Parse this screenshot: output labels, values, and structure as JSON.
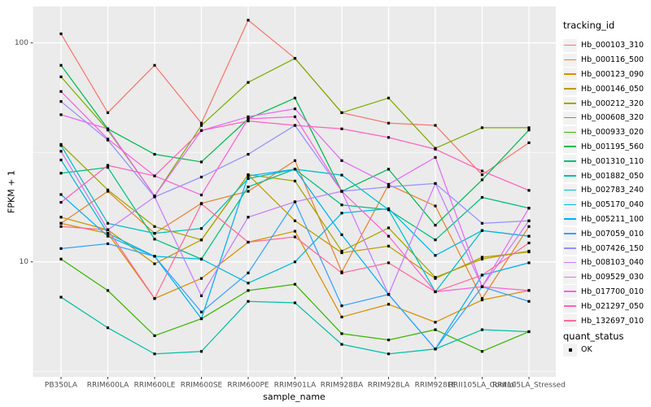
{
  "legend": {
    "tracking_title": "tracking_id",
    "quant_title": "quant_status",
    "quant_items": [
      {
        "label": "OK",
        "marker": "filled-black-square"
      }
    ]
  },
  "style": {
    "panel_background": "#EBEBEB",
    "gridline_color": "#FFFFFF",
    "tick_label_color": "#4D4D4D",
    "axis_title_color": "#000000",
    "point_color": "#000000",
    "legend_key_background": "#F2F2F2"
  },
  "chart_data": {
    "type": "line",
    "title": "",
    "xlabel": "sample_name",
    "ylabel": "FPKM + 1",
    "y_scale": "log10",
    "y_ticks": [
      10,
      100
    ],
    "y_minor_ticks": [
      3.162,
      31.62,
      316.2
    ],
    "ylim": [
      3.0,
      147
    ],
    "grid": true,
    "legend_position": "right",
    "point_shape": "filled-square-black",
    "x": [
      "PB350LA",
      "RRIM600LA",
      "RRIM600LE",
      "RRIM600SE",
      "RRIM600PE",
      "RRIM901LA",
      "RRIM928BA",
      "RRIM928LA",
      "RRIM928LE",
      "RRII105LA_Control",
      "RRII105LA_Stressed"
    ],
    "series": [
      {
        "name": "Hb_000103_310",
        "color": "#F8766D",
        "values": [
          110,
          48,
          79,
          43,
          127,
          85,
          48,
          43,
          42,
          25,
          35
        ]
      },
      {
        "name": "Hb_000116_500",
        "color": "#EA8331",
        "values": [
          15,
          21,
          13.5,
          18.5,
          21,
          29,
          9,
          22.5,
          18,
          6.8,
          14.5
        ]
      },
      {
        "name": "Hb_000123_090",
        "color": "#D89000",
        "values": [
          15,
          13.5,
          6.8,
          8.4,
          12.3,
          13.8,
          5.6,
          6.4,
          5.3,
          6.7,
          7.4
        ]
      },
      {
        "name": "Hb_000146_050",
        "color": "#BF9B00",
        "values": [
          16,
          14,
          9.8,
          12.6,
          25,
          15.4,
          11,
          11.8,
          8.4,
          10.5,
          11.1
        ]
      },
      {
        "name": "Hb_000212_320",
        "color": "#A3A500",
        "values": [
          34.4,
          21.3,
          14.5,
          12.6,
          25,
          23.4,
          11.2,
          14.3,
          8.5,
          10.3,
          11.2
        ]
      },
      {
        "name": "Hb_000608_320",
        "color": "#7CAE00",
        "values": [
          70,
          40,
          20,
          42,
          66,
          85,
          48,
          56,
          33,
          41,
          41
        ]
      },
      {
        "name": "Hb_000933_020",
        "color": "#39B600",
        "values": [
          10.3,
          7.4,
          4.6,
          5.5,
          7.4,
          7.9,
          4.7,
          4.4,
          4.9,
          3.9,
          4.8
        ]
      },
      {
        "name": "Hb_001195_560",
        "color": "#00BB4E",
        "values": [
          79,
          40.5,
          31,
          28.6,
          45,
          56,
          21,
          26.5,
          14.7,
          23.7,
          40
        ]
      },
      {
        "name": "Hb_001310_110",
        "color": "#00BF7D",
        "values": [
          25.4,
          27,
          12.7,
          10.3,
          22,
          26.5,
          18.2,
          17.3,
          12.6,
          19.7,
          17.6
        ]
      },
      {
        "name": "Hb_001882_050",
        "color": "#00C1A3",
        "values": [
          6.9,
          5.0,
          3.8,
          3.9,
          6.6,
          6.5,
          4.2,
          3.8,
          4.0,
          4.9,
          4.8
        ]
      },
      {
        "name": "Hb_002783_240",
        "color": "#00BFC4",
        "values": [
          34,
          15,
          13.5,
          14.2,
          24,
          26.5,
          24.9,
          17.3,
          7.3,
          13.9,
          13.1
        ]
      },
      {
        "name": "Hb_005170_040",
        "color": "#00BAE0",
        "values": [
          29.2,
          13.5,
          10.6,
          10.3,
          8.0,
          10.0,
          16.7,
          17.5,
          10.7,
          13.9,
          13.1
        ]
      },
      {
        "name": "Hb_005211_100",
        "color": "#00B0F6",
        "values": [
          20.3,
          13.1,
          10.6,
          5.5,
          24.7,
          26.5,
          13.3,
          7.1,
          4.0,
          8.7,
          9.9
        ]
      },
      {
        "name": "Hb_007059_010",
        "color": "#35A2FF",
        "values": [
          11.5,
          12.1,
          10.6,
          5.9,
          8.9,
          18.8,
          6.3,
          7.1,
          4.0,
          7.7,
          6.6
        ]
      },
      {
        "name": "Hb_007426_150",
        "color": "#9590FF",
        "values": [
          54,
          36,
          19.8,
          24.4,
          31,
          42,
          21,
          22,
          22.8,
          15,
          15.4
        ]
      },
      {
        "name": "Hb_008103_040",
        "color": "#C77CFF",
        "values": [
          32,
          14,
          19.8,
          7.0,
          16,
          18.8,
          21,
          7.1,
          22.8,
          7.7,
          15.4
        ]
      },
      {
        "name": "Hb_009529_030",
        "color": "#E76BF3",
        "values": [
          47,
          40.5,
          20,
          39.8,
          46,
          50,
          29,
          22.6,
          30,
          7.7,
          17.6
        ]
      },
      {
        "name": "Hb_017700_010",
        "color": "#FA62DB",
        "values": [
          60,
          36.4,
          24.7,
          20.2,
          45,
          46,
          21,
          13.1,
          7.3,
          7.7,
          7.4
        ]
      },
      {
        "name": "Hb_021297_050",
        "color": "#FF62BC",
        "values": [
          18.7,
          27.6,
          24.7,
          39.8,
          44,
          42,
          40.5,
          37,
          32.7,
          26,
          21.2
        ]
      },
      {
        "name": "Hb_132697_010",
        "color": "#FF6A98",
        "values": [
          14.5,
          14,
          6.8,
          18.4,
          12.3,
          13,
          8.9,
          9.9,
          7.3,
          8.7,
          12.2
        ]
      }
    ]
  }
}
